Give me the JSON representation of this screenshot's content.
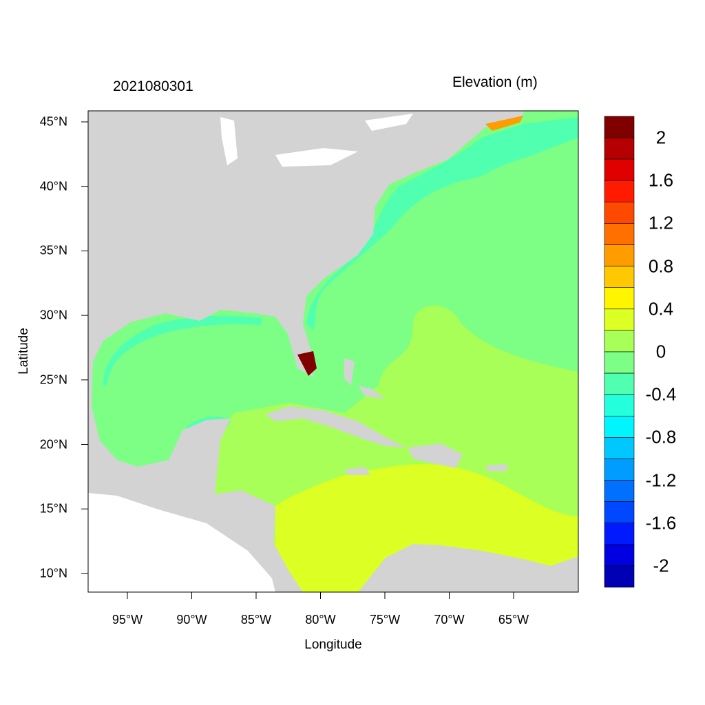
{
  "title_left": "2021080301",
  "title_right": "Elevation (m)",
  "map": {
    "extent": {
      "lon": [
        -98,
        -60
      ],
      "lat": [
        8.5,
        45.8
      ]
    },
    "land_color": "#d3d3d3",
    "nodata_color": "#ffffff"
  },
  "axes": {
    "xlabel": "Longitude",
    "ylabel": "Latitude",
    "xticks": [
      {
        "value": -95,
        "label": "95°W"
      },
      {
        "value": -90,
        "label": "90°W"
      },
      {
        "value": -85,
        "label": "85°W"
      },
      {
        "value": -80,
        "label": "80°W"
      },
      {
        "value": -75,
        "label": "75°W"
      },
      {
        "value": -70,
        "label": "70°W"
      },
      {
        "value": -65,
        "label": "65°W"
      }
    ],
    "yticks": [
      {
        "value": 45,
        "label": "45°N"
      },
      {
        "value": 40,
        "label": "40°N"
      },
      {
        "value": 35,
        "label": "35°N"
      },
      {
        "value": 30,
        "label": "30°N"
      },
      {
        "value": 25,
        "label": "25°N"
      },
      {
        "value": 20,
        "label": "20°N"
      },
      {
        "value": 15,
        "label": "15°N"
      },
      {
        "value": 10,
        "label": "10°N"
      }
    ]
  },
  "colorbar": {
    "colors": [
      "#800000",
      "#b40000",
      "#e00000",
      "#ff1a00",
      "#ff4800",
      "#ff7000",
      "#ff9c00",
      "#ffc800",
      "#fff500",
      "#dcff24",
      "#a8ff58",
      "#7cff84",
      "#50ffb0",
      "#24ffdc",
      "#00f5ff",
      "#00c8ff",
      "#009cff",
      "#0070ff",
      "#0048ff",
      "#001aff",
      "#0000e0",
      "#0000b4"
    ],
    "labels": [
      {
        "value": 2,
        "label": "2"
      },
      {
        "value": 1.6,
        "label": "1.6"
      },
      {
        "value": 1.2,
        "label": "1.2"
      },
      {
        "value": 0.8,
        "label": "0.8"
      },
      {
        "value": 0.4,
        "label": "0.4"
      },
      {
        "value": 0,
        "label": "0"
      },
      {
        "value": -0.4,
        "label": "-0.4"
      },
      {
        "value": -0.8,
        "label": "-0.8"
      },
      {
        "value": -1.2,
        "label": "-1.2"
      },
      {
        "value": -1.6,
        "label": "-1.6"
      },
      {
        "value": -2,
        "label": "-2"
      }
    ]
  }
}
